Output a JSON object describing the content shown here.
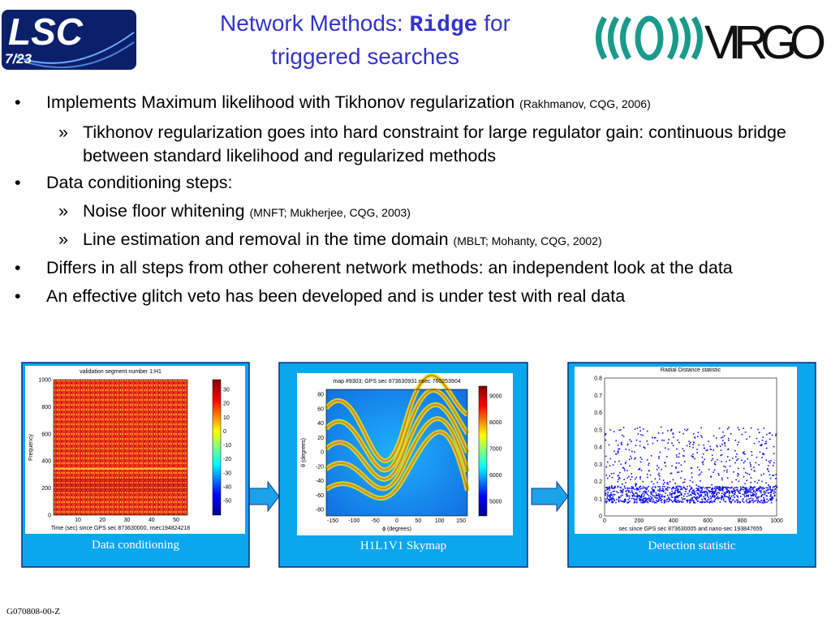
{
  "header": {
    "logo_left": {
      "text": "LSC",
      "page": "7/23"
    },
    "title": {
      "prefix": "Network Methods: ",
      "code": "Ridge",
      "suffix": " for",
      "line2": "triggered searches"
    },
    "logo_right": "VIRGO"
  },
  "bullets": {
    "bullet": "•",
    "sub_bullet": "»",
    "items": [
      {
        "text": "Implements Maximum likelihood with Tikhonov regularization",
        "cite": "(Rakhmanov, CQG, 2006)",
        "subitems": [
          {
            "text": "Tikhonov regularization goes into hard constraint for large regulator gain: continuous bridge between standard likelihood and regularized methods"
          }
        ]
      },
      {
        "text": "Data conditioning steps:",
        "subitems": [
          {
            "text": "Noise floor whitening",
            "cite": "(MNFT; Mukherjee, CQG, 2003)"
          },
          {
            "text": "Line estimation and removal in the time domain",
            "cite": "(MBLT; Mohanty, CQG, 2002)"
          }
        ]
      },
      {
        "text": "Differs in all steps from other coherent network methods: an independent look at the data"
      },
      {
        "text": "An effective glitch veto has been developed and is under test with real data"
      }
    ]
  },
  "panels": [
    {
      "caption": "Data conditioning",
      "plot": {
        "title": "validation segment number 1:H1",
        "xlabel": "Time (sec) since GPS sec 873630000, nsec194824218",
        "ylabel": "Frequency",
        "xticks": [
          10,
          20,
          30,
          40,
          50
        ],
        "yticks": [
          0,
          200,
          400,
          600,
          800,
          1000
        ],
        "cticks": [
          30,
          20,
          10,
          0,
          -10,
          -20,
          -30,
          -40,
          -50
        ]
      }
    },
    {
      "caption": "H1L1V1 Skymap",
      "plot": {
        "title": "map #9303; GPS sec 873630931 nsec 760253904",
        "xlabel": "ϕ (degrees)",
        "ylabel": "θ (degrees)",
        "xticks": [
          -150,
          -100,
          -50,
          0,
          50,
          100,
          150
        ],
        "yticks": [
          80,
          60,
          40,
          20,
          0,
          -20,
          -40,
          -60,
          -80
        ],
        "cticks": [
          9000,
          8000,
          7000,
          6000,
          5000
        ]
      }
    },
    {
      "caption": "Detection statistic",
      "plot": {
        "title": "Radial Distance statistic",
        "xlabel": "sec since GPS sec 873630005 and nano-sec 193847655",
        "xticks": [
          0,
          200,
          400,
          600,
          800,
          1000
        ],
        "yticks": [
          0.8,
          0.7,
          0.6,
          0.5,
          0.4,
          0.3,
          0.2,
          0.1,
          0
        ]
      }
    }
  ],
  "footer": "G070808-00-Z"
}
